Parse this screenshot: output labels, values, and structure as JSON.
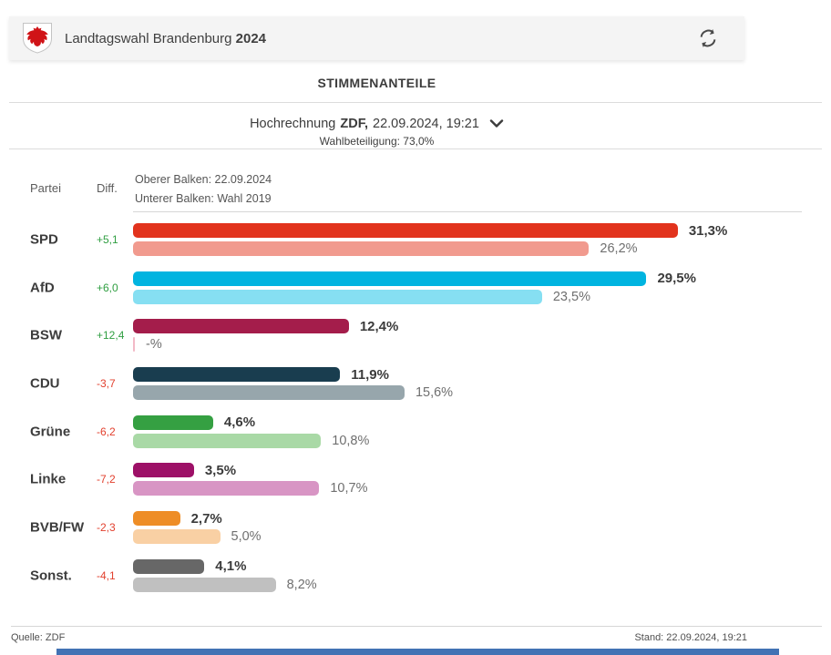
{
  "header": {
    "title": "Landtagswahl Brandenburg",
    "title_year": "2024"
  },
  "icons": {
    "coat_of_arms": "brandenburg-red-eagle-shield",
    "refresh": "circular-refresh-arrows",
    "dropdown": "chevron-down"
  },
  "section_title": "STIMMENANTEILE",
  "projection": {
    "label": "Hochrechnung",
    "source": "ZDF,",
    "datetime": "22.09.2024, 19:21",
    "turnout": "Wahlbeteiligung: 73,0%"
  },
  "legend": {
    "party_col": "Partei",
    "diff_col": "Diff.",
    "upper_bar": "Oberer Balken: 22.09.2024",
    "lower_bar": "Unterer Balken: Wahl 2019"
  },
  "colors": {
    "diff_positive": "#2f9e41",
    "diff_negative": "#e2402e",
    "header_bg": "#f4f4f4",
    "bottom_bar_blue": "#4272b4"
  },
  "rows": [
    {
      "party": "SPD",
      "diff": "+5,1",
      "diff_positive": true,
      "value_2024": 31.3,
      "label_2024": "31,3%",
      "value_2019": 26.2,
      "label_2019": "26,2%",
      "color_2024": "#e2331d",
      "color_2019": "#f19a8e"
    },
    {
      "party": "AfD",
      "diff": "+6,0",
      "diff_positive": true,
      "value_2024": 29.5,
      "label_2024": "29,5%",
      "value_2019": 23.5,
      "label_2019": "23,5%",
      "color_2024": "#00b4e0",
      "color_2019": "#86dff2"
    },
    {
      "party": "BSW",
      "diff": "+12,4",
      "diff_positive": true,
      "value_2024": 12.4,
      "label_2024": "12,4%",
      "value_2019": null,
      "label_2019": "-%",
      "color_2024": "#a41d4b",
      "color_2019": "#f3b9c7"
    },
    {
      "party": "CDU",
      "diff": "-3,7",
      "diff_positive": false,
      "value_2024": 11.9,
      "label_2024": "11,9%",
      "value_2019": 15.6,
      "label_2019": "15,6%",
      "color_2024": "#193d4f",
      "color_2019": "#97a6ac"
    },
    {
      "party": "Grüne",
      "diff": "-6,2",
      "diff_positive": false,
      "value_2024": 4.6,
      "label_2024": "4,6%",
      "value_2019": 10.8,
      "label_2019": "10,8%",
      "color_2024": "#35a042",
      "color_2019": "#a9d9a6"
    },
    {
      "party": "Linke",
      "diff": "-7,2",
      "diff_positive": false,
      "value_2024": 3.5,
      "label_2024": "3,5%",
      "value_2019": 10.7,
      "label_2019": "10,7%",
      "color_2024": "#9d1067",
      "color_2019": "#d895c4"
    },
    {
      "party": "BVB/FW",
      "diff": "-2,3",
      "diff_positive": false,
      "value_2024": 2.7,
      "label_2024": "2,7%",
      "value_2019": 5.0,
      "label_2019": "5,0%",
      "color_2024": "#ee8d26",
      "color_2019": "#f9d0a4"
    },
    {
      "party": "Sonst.",
      "diff": "-4,1",
      "diff_positive": false,
      "value_2024": 4.1,
      "label_2024": "4,1%",
      "value_2019": 8.2,
      "label_2019": "8,2%",
      "color_2024": "#676767",
      "color_2019": "#c0c0c0"
    }
  ],
  "footer": {
    "source": "Quelle: ZDF",
    "stand": "Stand: 22.09.2024, 19:21"
  },
  "chart_data": {
    "type": "bar",
    "orientation": "horizontal",
    "title": "STIMMENANTEILE",
    "subtitle": "Hochrechnung ZDF, 22.09.2024, 19:21 — Wahlbeteiligung: 73,0%",
    "categories": [
      "SPD",
      "AfD",
      "BSW",
      "CDU",
      "Grüne",
      "Linke",
      "BVB/FW",
      "Sonst."
    ],
    "series": [
      {
        "name": "22.09.2024",
        "values": [
          31.3,
          29.5,
          12.4,
          11.9,
          4.6,
          3.5,
          2.7,
          4.1
        ]
      },
      {
        "name": "Wahl 2019",
        "values": [
          26.2,
          23.5,
          null,
          15.6,
          10.8,
          10.7,
          5.0,
          8.2
        ]
      }
    ],
    "diff_vs_2019": [
      5.1,
      6.0,
      12.4,
      -3.7,
      -6.2,
      -7.2,
      -2.3,
      -4.1
    ],
    "value_suffix": "%",
    "xlim": [
      0,
      35
    ],
    "grid": false,
    "legend_position": "top-left"
  }
}
